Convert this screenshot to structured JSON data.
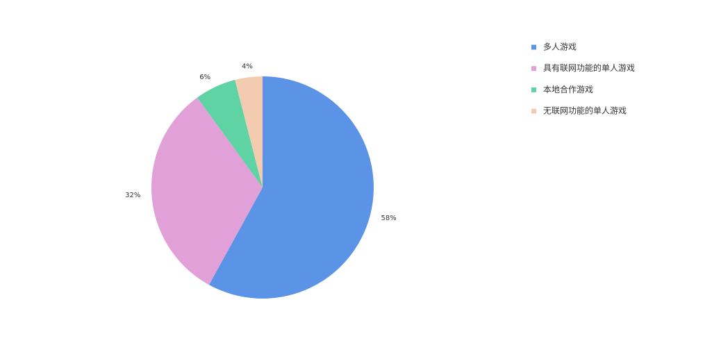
{
  "chart_data": {
    "type": "pie",
    "categories": [
      "多人游戏",
      "具有联网功能的单人游戏",
      "本地合作游戏",
      "无联网功能的单人游戏"
    ],
    "values": [
      58,
      32,
      6,
      4
    ],
    "value_labels": [
      "58%",
      "32%",
      "6%",
      "4%"
    ],
    "colors": [
      "#5b93e6",
      "#e2a0d8",
      "#5fd3a3",
      "#f2cbb0"
    ],
    "legend": "right"
  }
}
